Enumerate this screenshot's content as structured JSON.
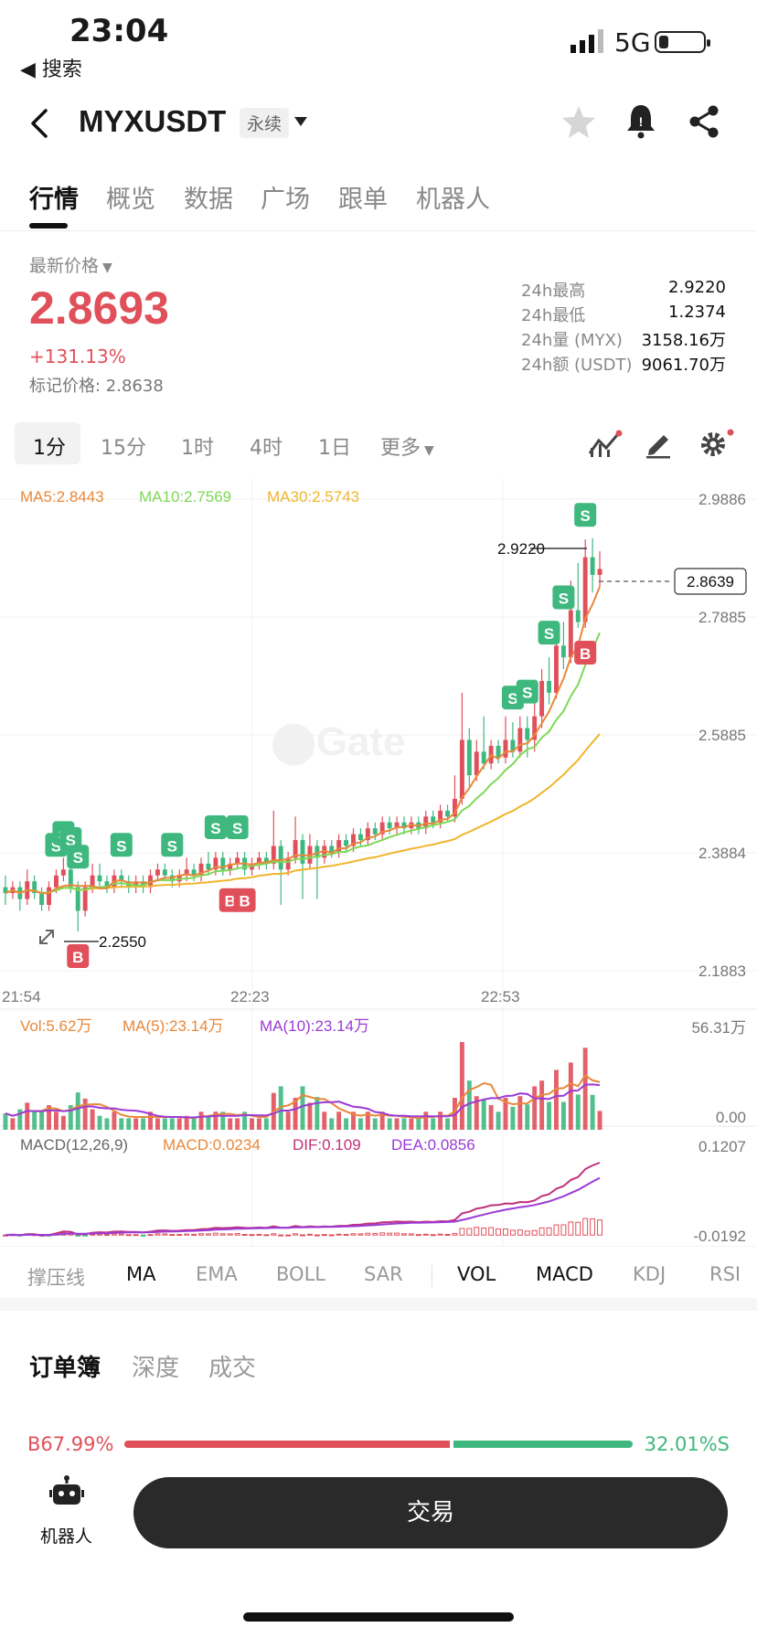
{
  "status": {
    "time": "23:04",
    "back": "◀ 搜索",
    "network": "5G"
  },
  "header": {
    "symbol": "MYXUSDT",
    "tag": "永续"
  },
  "nav": {
    "tabs": [
      "行情",
      "概览",
      "数据",
      "广场",
      "跟单",
      "机器人"
    ]
  },
  "ticker": {
    "last_label": "最新价格",
    "last_price": "2.8693",
    "change": "+131.13%",
    "mark_price": "标记价格: 2.8638",
    "stats": [
      {
        "label": "24h最高",
        "value": "2.9220"
      },
      {
        "label": "24h最低",
        "value": "1.2374"
      },
      {
        "label": "24h量 (MYX)",
        "value": "3158.16万"
      },
      {
        "label": "24h额 (USDT)",
        "value": "9061.70万"
      }
    ]
  },
  "periods": [
    "1分",
    "15分",
    "1时",
    "4时",
    "1日",
    "更多"
  ],
  "chart_data": {
    "type": "candlestick",
    "ma_labels": {
      "ma5": "MA5:2.8443",
      "ma10": "MA10:2.7569",
      "ma30": "MA30:2.5743"
    },
    "y_ticks": [
      "2.9886",
      "2.7885",
      "2.5885",
      "2.3884",
      "2.1883"
    ],
    "x_ticks": [
      "21:54",
      "22:23",
      "22:53"
    ],
    "ylim": [
      2.1883,
      2.9886
    ],
    "high_label": "2.9220",
    "low_label": "2.2550",
    "current_price_label": "2.8639",
    "candles": [
      [
        2.33,
        2.32,
        2.35,
        2.3
      ],
      [
        2.32,
        2.33,
        2.34,
        2.31
      ],
      [
        2.33,
        2.31,
        2.34,
        2.29
      ],
      [
        2.31,
        2.34,
        2.36,
        2.3
      ],
      [
        2.34,
        2.32,
        2.35,
        2.31
      ],
      [
        2.32,
        2.3,
        2.33,
        2.29
      ],
      [
        2.3,
        2.33,
        2.34,
        2.29
      ],
      [
        2.33,
        2.35,
        2.36,
        2.32
      ],
      [
        2.35,
        2.36,
        2.38,
        2.34
      ],
      [
        2.36,
        2.33,
        2.37,
        2.32
      ],
      [
        2.33,
        2.29,
        2.34,
        2.255
      ],
      [
        2.29,
        2.33,
        2.34,
        2.28
      ],
      [
        2.33,
        2.35,
        2.37,
        2.32
      ],
      [
        2.35,
        2.34,
        2.37,
        2.33
      ],
      [
        2.34,
        2.33,
        2.35,
        2.32
      ],
      [
        2.33,
        2.35,
        2.36,
        2.32
      ],
      [
        2.35,
        2.34,
        2.36,
        2.33
      ],
      [
        2.34,
        2.33,
        2.35,
        2.32
      ],
      [
        2.33,
        2.34,
        2.35,
        2.32
      ],
      [
        2.34,
        2.33,
        2.35,
        2.32
      ],
      [
        2.33,
        2.35,
        2.36,
        2.32
      ],
      [
        2.35,
        2.36,
        2.37,
        2.34
      ],
      [
        2.36,
        2.35,
        2.37,
        2.34
      ],
      [
        2.35,
        2.34,
        2.36,
        2.33
      ],
      [
        2.34,
        2.35,
        2.36,
        2.33
      ],
      [
        2.35,
        2.36,
        2.38,
        2.34
      ],
      [
        2.36,
        2.35,
        2.37,
        2.34
      ],
      [
        2.35,
        2.37,
        2.38,
        2.34
      ],
      [
        2.37,
        2.36,
        2.39,
        2.35
      ],
      [
        2.36,
        2.38,
        2.39,
        2.35
      ],
      [
        2.38,
        2.36,
        2.39,
        2.35
      ],
      [
        2.36,
        2.37,
        2.38,
        2.35
      ],
      [
        2.37,
        2.38,
        2.39,
        2.36
      ],
      [
        2.38,
        2.36,
        2.39,
        2.35
      ],
      [
        2.36,
        2.37,
        2.38,
        2.35
      ],
      [
        2.37,
        2.38,
        2.39,
        2.36
      ],
      [
        2.38,
        2.37,
        2.39,
        2.36
      ],
      [
        2.37,
        2.4,
        2.46,
        2.36
      ],
      [
        2.4,
        2.36,
        2.41,
        2.3
      ],
      [
        2.36,
        2.38,
        2.39,
        2.35
      ],
      [
        2.38,
        2.41,
        2.45,
        2.37
      ],
      [
        2.41,
        2.37,
        2.42,
        2.31
      ],
      [
        2.37,
        2.4,
        2.42,
        2.36
      ],
      [
        2.4,
        2.38,
        2.41,
        2.31
      ],
      [
        2.38,
        2.4,
        2.41,
        2.37
      ],
      [
        2.4,
        2.39,
        2.41,
        2.38
      ],
      [
        2.39,
        2.41,
        2.42,
        2.38
      ],
      [
        2.41,
        2.4,
        2.42,
        2.39
      ],
      [
        2.4,
        2.42,
        2.43,
        2.39
      ],
      [
        2.42,
        2.41,
        2.43,
        2.4
      ],
      [
        2.41,
        2.43,
        2.44,
        2.4
      ],
      [
        2.43,
        2.42,
        2.44,
        2.41
      ],
      [
        2.42,
        2.44,
        2.45,
        2.41
      ],
      [
        2.44,
        2.43,
        2.45,
        2.42
      ],
      [
        2.43,
        2.44,
        2.45,
        2.42
      ],
      [
        2.44,
        2.43,
        2.45,
        2.42
      ],
      [
        2.43,
        2.44,
        2.45,
        2.42
      ],
      [
        2.44,
        2.43,
        2.45,
        2.42
      ],
      [
        2.43,
        2.45,
        2.46,
        2.42
      ],
      [
        2.45,
        2.44,
        2.46,
        2.43
      ],
      [
        2.44,
        2.46,
        2.47,
        2.43
      ],
      [
        2.46,
        2.45,
        2.47,
        2.44
      ],
      [
        2.45,
        2.48,
        2.52,
        2.44
      ],
      [
        2.48,
        2.58,
        2.66,
        2.47
      ],
      [
        2.58,
        2.52,
        2.6,
        2.5
      ],
      [
        2.52,
        2.56,
        2.58,
        2.51
      ],
      [
        2.56,
        2.54,
        2.62,
        2.53
      ],
      [
        2.54,
        2.57,
        2.58,
        2.53
      ],
      [
        2.57,
        2.55,
        2.58,
        2.54
      ],
      [
        2.55,
        2.58,
        2.62,
        2.54
      ],
      [
        2.58,
        2.56,
        2.61,
        2.55
      ],
      [
        2.56,
        2.6,
        2.62,
        2.55
      ],
      [
        2.6,
        2.58,
        2.62,
        2.55
      ],
      [
        2.58,
        2.62,
        2.67,
        2.56
      ],
      [
        2.62,
        2.68,
        2.7,
        2.6
      ],
      [
        2.68,
        2.66,
        2.72,
        2.64
      ],
      [
        2.66,
        2.74,
        2.76,
        2.65
      ],
      [
        2.74,
        2.72,
        2.78,
        2.7
      ],
      [
        2.72,
        2.8,
        2.85,
        2.71
      ],
      [
        2.8,
        2.78,
        2.88,
        2.77
      ],
      [
        2.78,
        2.89,
        2.92,
        2.77
      ],
      [
        2.89,
        2.86,
        2.922,
        2.83
      ],
      [
        2.86,
        2.87,
        2.9,
        2.84
      ]
    ],
    "volume": {
      "labels": {
        "vol": "Vol:5.62万",
        "ma5": "MA(5):23.14万",
        "ma10": "MA(10):23.14万"
      },
      "ylim_labels": [
        "56.31万",
        "0.00"
      ]
    },
    "macd": {
      "labels": {
        "title": "MACD(12,26,9)",
        "macd": "MACD:0.0234",
        "dif": "DIF:0.109",
        "dea": "DEA:0.0856"
      },
      "ylim_labels": [
        "0.1207",
        "-0.0192"
      ]
    }
  },
  "indicators": [
    "撑压线",
    "MA",
    "EMA",
    "BOLL",
    "SAR",
    "VOL",
    "MACD",
    "KDJ",
    "RSI"
  ],
  "orderbook": {
    "tabs": [
      "订单簿",
      "深度",
      "成交"
    ],
    "buy_ratio": "B67.99%",
    "sell_ratio": "32.01%S"
  },
  "footer": {
    "robot_label": "机器人",
    "trade_label": "交易"
  },
  "colors": {
    "up": "#e0505a",
    "down": "#3fb87f",
    "ma5": "#e8883a",
    "ma10": "#7ed957",
    "ma30": "#f0b52c",
    "dif": "#c0307a",
    "dea": "#9b3bd6"
  }
}
